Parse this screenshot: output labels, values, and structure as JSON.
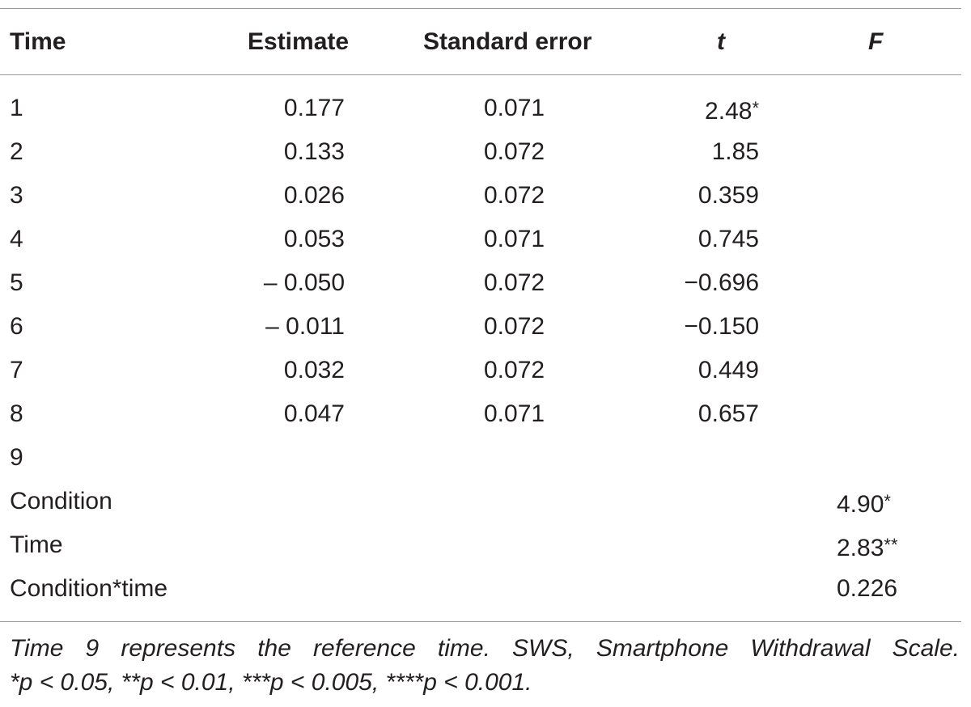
{
  "table": {
    "headers": {
      "time": "Time",
      "estimate": "Estimate",
      "std_error": "Standard error",
      "t": "t",
      "f": "F"
    },
    "rows": [
      {
        "label": "1",
        "estimate": "0.177",
        "std_error": "0.071",
        "t": "2.48*",
        "f": ""
      },
      {
        "label": "2",
        "estimate": "0.133",
        "std_error": "0.072",
        "t": "1.85",
        "f": ""
      },
      {
        "label": "3",
        "estimate": "0.026",
        "std_error": "0.072",
        "t": "0.359",
        "f": ""
      },
      {
        "label": "4",
        "estimate": "0.053",
        "std_error": "0.071",
        "t": "0.745",
        "f": ""
      },
      {
        "label": "5",
        "estimate": "– 0.050",
        "std_error": "0.072",
        "t": "−0.696",
        "f": ""
      },
      {
        "label": "6",
        "estimate": "– 0.011",
        "std_error": "0.072",
        "t": "−0.150",
        "f": ""
      },
      {
        "label": "7",
        "estimate": "0.032",
        "std_error": "0.072",
        "t": "0.449",
        "f": ""
      },
      {
        "label": "8",
        "estimate": "0.047",
        "std_error": "0.071",
        "t": "0.657",
        "f": ""
      },
      {
        "label": "9",
        "estimate": "",
        "std_error": "",
        "t": "",
        "f": ""
      },
      {
        "label": "Condition",
        "estimate": "",
        "std_error": "",
        "t": "",
        "f": "4.90*"
      },
      {
        "label": "Time",
        "estimate": "",
        "std_error": "",
        "t": "",
        "f": "2.83**"
      },
      {
        "label": "Condition*time",
        "estimate": "",
        "std_error": "",
        "t": "",
        "f": "0.226"
      }
    ],
    "footnote": {
      "line1": "Time 9 represents the reference time. SWS, Smartphone Withdrawal Scale.",
      "line2": "*p < 0.05, **p < 0.01, ***p < 0.005, ****p < 0.001."
    }
  }
}
